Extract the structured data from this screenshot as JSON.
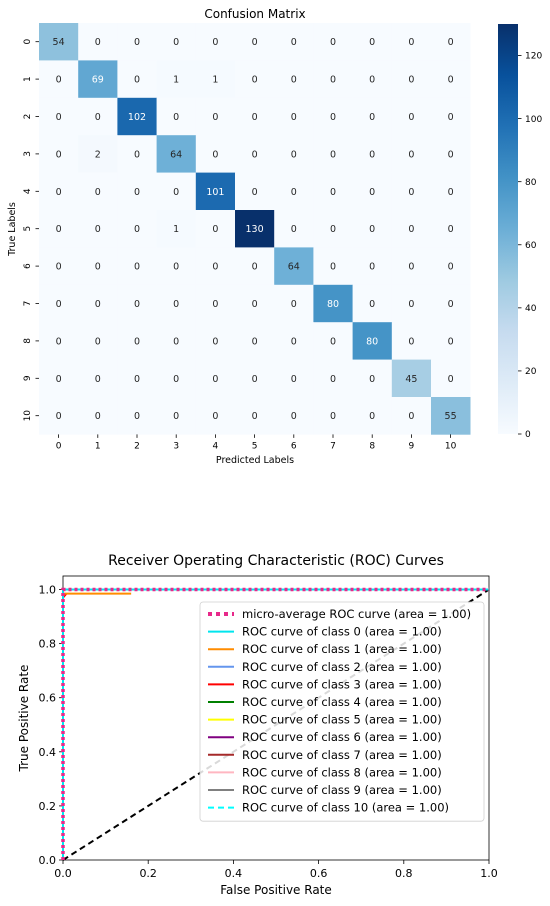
{
  "chart_data": [
    {
      "type": "heatmap",
      "title": "Confusion Matrix",
      "xlabel": "Predicted Labels",
      "ylabel": "True Labels",
      "labels": [
        "0",
        "1",
        "2",
        "3",
        "4",
        "5",
        "6",
        "7",
        "8",
        "9",
        "10"
      ],
      "matrix": [
        [
          54,
          0,
          0,
          0,
          0,
          0,
          0,
          0,
          0,
          0,
          0
        ],
        [
          0,
          69,
          0,
          1,
          1,
          0,
          0,
          0,
          0,
          0,
          0
        ],
        [
          0,
          0,
          102,
          0,
          0,
          0,
          0,
          0,
          0,
          0,
          0
        ],
        [
          0,
          2,
          0,
          64,
          0,
          0,
          0,
          0,
          0,
          0,
          0
        ],
        [
          0,
          0,
          0,
          0,
          101,
          0,
          0,
          0,
          0,
          0,
          0
        ],
        [
          0,
          0,
          0,
          1,
          0,
          130,
          0,
          0,
          0,
          0,
          0
        ],
        [
          0,
          0,
          0,
          0,
          0,
          0,
          64,
          0,
          0,
          0,
          0
        ],
        [
          0,
          0,
          0,
          0,
          0,
          0,
          0,
          80,
          0,
          0,
          0
        ],
        [
          0,
          0,
          0,
          0,
          0,
          0,
          0,
          0,
          80,
          0,
          0
        ],
        [
          0,
          0,
          0,
          0,
          0,
          0,
          0,
          0,
          0,
          45,
          0
        ],
        [
          0,
          0,
          0,
          0,
          0,
          0,
          0,
          0,
          0,
          0,
          55
        ]
      ],
      "colorbar": {
        "min": 0,
        "max": 130,
        "ticks": [
          0,
          20,
          40,
          60,
          80,
          100,
          120
        ]
      },
      "colormap": "Blues"
    },
    {
      "type": "line",
      "title": "Receiver Operating Characteristic (ROC) Curves",
      "xlabel": "False Positive Rate",
      "ylabel": "True Positive Rate",
      "xlim": [
        0.0,
        1.0
      ],
      "ylim": [
        0.0,
        1.05
      ],
      "xticks": [
        "0.0",
        "0.2",
        "0.4",
        "0.6",
        "0.8",
        "1.0"
      ],
      "yticks": [
        "0.0",
        "0.2",
        "0.4",
        "0.6",
        "0.8",
        "1.0"
      ],
      "legend_position": "lower-right",
      "series": [
        {
          "name": "micro-average ROC curve (area = 1.00)",
          "color": "#e7298a",
          "style": "dotted",
          "x": [
            0.0,
            0.0,
            1.0
          ],
          "y": [
            0.0,
            1.0,
            1.0
          ]
        },
        {
          "name": "ROC curve of class 0 (area = 1.00)",
          "color": "#00e5ee",
          "style": "solid",
          "x": [
            0.0,
            0.0,
            1.0
          ],
          "y": [
            0.0,
            1.0,
            1.0
          ]
        },
        {
          "name": "ROC curve of class 1 (area = 1.00)",
          "color": "#ff8c00",
          "style": "solid",
          "x": [
            0.0,
            0.0,
            0.16
          ],
          "y": [
            0.0,
            0.985,
            0.985
          ]
        },
        {
          "name": "ROC curve of class 2 (area = 1.00)",
          "color": "#6495ed",
          "style": "solid",
          "x": [
            0.0,
            0.0,
            1.0
          ],
          "y": [
            0.0,
            1.0,
            1.0
          ]
        },
        {
          "name": "ROC curve of class 3 (area = 1.00)",
          "color": "#ff0000",
          "style": "solid",
          "x": [
            0.0,
            0.0,
            0.008
          ],
          "y": [
            0.0,
            0.97,
            0.985
          ]
        },
        {
          "name": "ROC curve of class 4 (area = 1.00)",
          "color": "#008000",
          "style": "solid",
          "x": [
            0.0,
            0.0,
            1.0
          ],
          "y": [
            0.0,
            1.0,
            1.0
          ]
        },
        {
          "name": "ROC curve of class 5 (area = 1.00)",
          "color": "#ffff00",
          "style": "solid",
          "x": [
            0.0,
            0.0,
            1.0
          ],
          "y": [
            0.0,
            1.0,
            1.0
          ]
        },
        {
          "name": "ROC curve of class 6 (area = 1.00)",
          "color": "#800080",
          "style": "solid",
          "x": [
            0.0,
            0.0,
            1.0
          ],
          "y": [
            0.0,
            1.0,
            1.0
          ]
        },
        {
          "name": "ROC curve of class 7 (area = 1.00)",
          "color": "#a52a2a",
          "style": "solid",
          "x": [
            0.0,
            0.0,
            1.0
          ],
          "y": [
            0.0,
            1.0,
            1.0
          ]
        },
        {
          "name": "ROC curve of class 8 (area = 1.00)",
          "color": "#ffb6c1",
          "style": "solid",
          "x": [
            0.0,
            0.0,
            1.0
          ],
          "y": [
            0.0,
            1.0,
            1.0
          ]
        },
        {
          "name": "ROC curve of class 9 (area = 1.00)",
          "color": "#808080",
          "style": "solid",
          "x": [
            0.0,
            0.0,
            1.0
          ],
          "y": [
            0.0,
            1.0,
            1.0
          ]
        },
        {
          "name": "ROC curve of class 10 (area = 1.00)",
          "color": "#00ffff",
          "style": "dashed",
          "x": [
            0.0,
            0.0,
            1.0
          ],
          "y": [
            0.0,
            1.0,
            1.0
          ]
        }
      ],
      "reference_line": {
        "color": "#000000",
        "style": "dashed",
        "x": [
          0.0,
          1.0
        ],
        "y": [
          0.0,
          1.0
        ]
      }
    }
  ]
}
